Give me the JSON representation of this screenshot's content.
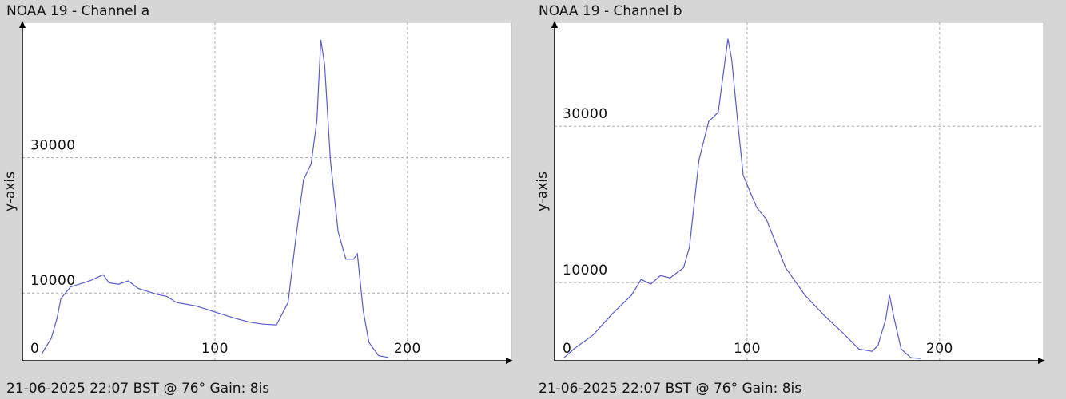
{
  "chart_data": [
    {
      "type": "line",
      "title": "NOAA 19 - Channel a",
      "caption": "21-06-2025 22:07 BST @ 76° Gain: 8is",
      "ylabel": "y-axis",
      "color": "#5a5ad2",
      "grid": true,
      "xlim": [
        0,
        254
      ],
      "xticks": [
        100,
        200
      ],
      "ylim": [
        0,
        50000
      ],
      "yticks": [
        0,
        10000,
        30000
      ],
      "x": [
        10,
        15,
        18,
        20,
        25,
        35,
        42,
        45,
        50,
        55,
        60,
        70,
        75,
        80,
        90,
        100,
        110,
        118,
        125,
        132,
        138,
        142,
        146,
        150,
        153,
        155,
        157,
        160,
        164,
        168,
        172,
        174,
        177,
        180,
        185,
        190
      ],
      "values": [
        1000,
        3300,
        6300,
        9200,
        10900,
        11800,
        12700,
        11500,
        11300,
        11800,
        10700,
        9800,
        9500,
        8600,
        8100,
        7200,
        6300,
        5700,
        5400,
        5300,
        8600,
        18000,
        26700,
        29100,
        35500,
        47400,
        43700,
        29600,
        19100,
        15000,
        15000,
        15800,
        7400,
        2700,
        760,
        500
      ]
    },
    {
      "type": "line",
      "title": "NOAA 19 - Channel b",
      "caption": "21-06-2025 22:07 BST @ 76° Gain: 8is",
      "ylabel": "y-axis",
      "color": "#5a5ad2",
      "grid": true,
      "xlim": [
        0,
        254
      ],
      "xticks": [
        100,
        200
      ],
      "ylim": [
        0,
        43300
      ],
      "yticks": [
        0,
        10000,
        30000
      ],
      "x": [
        5,
        10,
        20,
        30,
        40,
        45,
        50,
        55,
        60,
        67,
        70,
        75,
        80,
        85,
        88,
        90,
        92,
        95,
        98,
        105,
        110,
        120,
        130,
        140,
        150,
        158,
        165,
        168,
        172,
        174,
        176,
        180,
        185,
        190
      ],
      "values": [
        400,
        1500,
        3300,
        6000,
        8400,
        10400,
        9800,
        10900,
        10600,
        11900,
        14500,
        25700,
        30600,
        31800,
        37400,
        41200,
        38500,
        30800,
        23700,
        19600,
        18100,
        11900,
        8400,
        5800,
        3500,
        1500,
        1200,
        2000,
        5300,
        8400,
        5800,
        1500,
        400,
        300
      ]
    }
  ]
}
